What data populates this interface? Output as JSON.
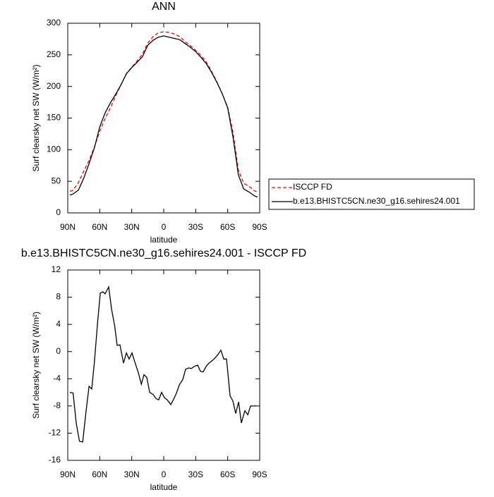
{
  "chart_data": [
    {
      "type": "line",
      "title": "ANN",
      "x_label": "latitude",
      "y_label": "Surf clearsky net SW (W/m²)",
      "xlim": [
        90,
        -90
      ],
      "ylim": [
        0,
        300
      ],
      "xticks": [
        {
          "value": 90,
          "label": "90N"
        },
        {
          "value": 60,
          "label": "60N"
        },
        {
          "value": 30,
          "label": "30N"
        },
        0,
        {
          "value": -30,
          "label": "30S"
        },
        {
          "value": -60,
          "label": "60S"
        },
        {
          "value": -90,
          "label": "90S"
        }
      ],
      "yticks": [
        0,
        50,
        100,
        150,
        200,
        250,
        300
      ],
      "legend": "right",
      "x": [
        88,
        85,
        80,
        75,
        70,
        65,
        60,
        55,
        50,
        45,
        40,
        35,
        30,
        25,
        20,
        15,
        10,
        5,
        0,
        -5,
        -10,
        -15,
        -20,
        -25,
        -30,
        -35,
        -40,
        -45,
        -50,
        -55,
        -60,
        -65,
        -70,
        -75,
        -80,
        -85,
        -88
      ],
      "series": [
        {
          "name": "ISCCP FD",
          "color": "#ff0000",
          "line_style": "dashed",
          "values": [
            34,
            36,
            48,
            66,
            83,
            104.5,
            129,
            149.5,
            166,
            185.5,
            203,
            220.5,
            230.5,
            240.5,
            251,
            268.6,
            279,
            285,
            286.5,
            285.5,
            283,
            279,
            271,
            264.5,
            257,
            249,
            238.5,
            223.5,
            206.5,
            188,
            167,
            127,
            67.5,
            47,
            42,
            35,
            33
          ]
        },
        {
          "name": "b.e13.BHISTC5CN.ne30_g16.sehires24.001",
          "color": "#000000",
          "line_style": "solid",
          "values": [
            28,
            30,
            36,
            55,
            78,
            103,
            136,
            158,
            174,
            188,
            203,
            220,
            230,
            238,
            247,
            265,
            273,
            278,
            280,
            278,
            276,
            274,
            268,
            262,
            255,
            246,
            236,
            222,
            206,
            188,
            166,
            120,
            60,
            38,
            33,
            27,
            25
          ]
        }
      ]
    },
    {
      "type": "line",
      "title": "b.e13.BHISTC5CN.ne30_g16.sehires24.001 - ISCCP FD",
      "x_label": "latitude",
      "y_label": "Surf clearsky net SW (W/m²)",
      "xlim": [
        90,
        -90
      ],
      "ylim": [
        -16,
        12
      ],
      "xticks": [
        {
          "value": 90,
          "label": "90N"
        },
        {
          "value": 60,
          "label": "60N"
        },
        {
          "value": 30,
          "label": "30N"
        },
        0,
        {
          "value": -30,
          "label": "30S"
        },
        {
          "value": -60,
          "label": "60S"
        },
        {
          "value": -90,
          "label": "90S"
        }
      ],
      "yticks": [
        -16,
        -12,
        -8,
        -4,
        0,
        4,
        8,
        12
      ],
      "color": "#000000",
      "x": [
        88,
        85,
        82,
        79,
        76,
        73,
        70,
        67.5,
        65,
        62,
        59.5,
        57,
        55,
        51.6,
        49,
        46,
        43.7,
        41,
        37.7,
        35,
        32.4,
        29.8,
        27,
        23.8,
        21,
        18.5,
        15.9,
        13.2,
        10,
        7.3,
        4.7,
        2,
        -0.7,
        -3.3,
        -6.6,
        -9.3,
        -12,
        -14.6,
        -17.9,
        -20.5,
        -23.2,
        -25.8,
        -28.5,
        -31.8,
        -34.4,
        -37,
        -39.7,
        -42.4,
        -45.7,
        -48.3,
        -51,
        -53.6,
        -56.3,
        -58.9,
        -62.2,
        -64.9,
        -67.5,
        -70.2,
        -72.8,
        -76.1,
        -78.8,
        -81.4,
        -84.1,
        -86.7
      ],
      "values": [
        -6,
        -6.1,
        -10.6,
        -13.2,
        -13.3,
        -9,
        -5.1,
        -5.5,
        -1.5,
        4.3,
        8.6,
        8.8,
        8.5,
        9.5,
        6.3,
        3.8,
        0.9,
        1,
        -1.7,
        -0.2,
        -1.1,
        -0.2,
        -1.6,
        -3.1,
        -4.8,
        -3.4,
        -3.8,
        -6,
        -6.3,
        -6.9,
        -7.1,
        -6,
        -6.8,
        -7.1,
        -7.8,
        -7,
        -6.1,
        -4.9,
        -4.1,
        -2.6,
        -2.4,
        -2.5,
        -2.2,
        -2,
        -2.9,
        -3,
        -2.2,
        -1.7,
        -1.3,
        -0.9,
        -0.4,
        0.2,
        -1.1,
        -1.1,
        -6.5,
        -7.3,
        -9.1,
        -7.4,
        -10.5,
        -8.7,
        -9.3,
        -8,
        -8,
        -8
      ]
    }
  ]
}
